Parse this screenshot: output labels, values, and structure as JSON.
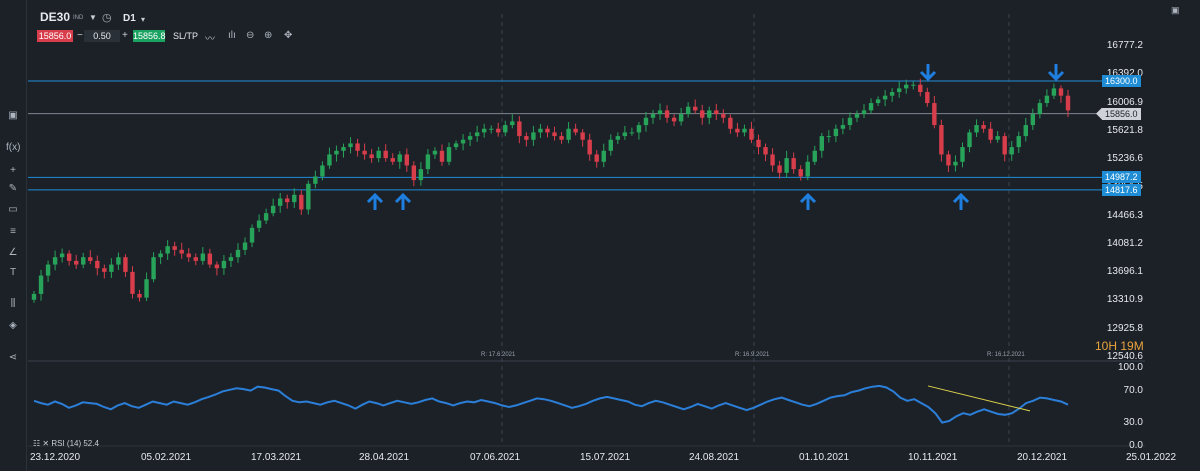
{
  "header": {
    "symbol": "DE30",
    "symbol_type": "IND",
    "timeframe": "D1",
    "bid": "15856.0",
    "qty": "0.50",
    "ask": "15856.8",
    "minus": "−",
    "plus": "+",
    "sltp": "SL/TP"
  },
  "icons": {
    "timeframe_dropdown": "chevron-down-icon",
    "clock": "clock-icon",
    "line_chart": "line-chart-icon",
    "indicators": "indicators-icon",
    "zoom_out": "zoom-out-icon",
    "zoom_in": "zoom-in-icon",
    "crosshair": "crosshair-icon",
    "close": "close-icon"
  },
  "sidebar": {
    "items": [
      {
        "name": "chart-icon",
        "glyph": "▣"
      },
      {
        "name": "function-icon",
        "glyph": "f(x)"
      },
      {
        "name": "crosshair-tool-icon",
        "glyph": "+"
      },
      {
        "name": "pencil-icon",
        "glyph": "✎"
      },
      {
        "name": "rectangle-icon",
        "glyph": "▭"
      },
      {
        "name": "fibonacci-icon",
        "glyph": "≡"
      },
      {
        "name": "angle-icon",
        "glyph": "∠"
      },
      {
        "name": "text-icon",
        "glyph": "T"
      },
      {
        "name": "layout-icon",
        "glyph": "⫼"
      },
      {
        "name": "layers-icon",
        "glyph": "◈"
      },
      {
        "name": "share-icon",
        "glyph": "⋖"
      }
    ]
  },
  "price_axis": {
    "ticks": [
      "16777.2",
      "16392.0",
      "16006.9",
      "15621.8",
      "15236.6",
      "14851.5",
      "14466.3",
      "14081.2",
      "13696.1",
      "13310.9",
      "12925.8",
      "12540.6"
    ]
  },
  "levels": [
    {
      "value": "16300.0",
      "style": "blue"
    },
    {
      "value": "15856.0",
      "style": "gray"
    },
    {
      "value": "14987.2",
      "style": "blue"
    },
    {
      "value": "14817.6",
      "style": "blue"
    }
  ],
  "date_axis": {
    "ticks": [
      "23.12.2020",
      "05.02.2021",
      "17.03.2021",
      "28.04.2021",
      "07.06.2021",
      "15.07.2021",
      "24.08.2021",
      "01.10.2021",
      "10.11.2021",
      "20.12.2021",
      "25.01.2022"
    ]
  },
  "rollovers": [
    "R: 17.6.2021",
    "R: 16.9.2021",
    "R: 16.12.2021"
  ],
  "timer": {
    "hours": "10H",
    "minutes": "19M"
  },
  "rsi": {
    "label": "RSI (14) 52.4",
    "axis": [
      "100.0",
      "70.0",
      "30.0",
      "0.0"
    ],
    "values": [
      58,
      55,
      53,
      57,
      54,
      49,
      52,
      56,
      55,
      54,
      50,
      47,
      52,
      55,
      51,
      49,
      53,
      57,
      55,
      53,
      57,
      55,
      53,
      56,
      60,
      63,
      66,
      70,
      72,
      74,
      73,
      71,
      76,
      75,
      73,
      71,
      64,
      58,
      56,
      57,
      55,
      53,
      56,
      58,
      55,
      52,
      48,
      53,
      57,
      55,
      52,
      55,
      58,
      56,
      54,
      56,
      59,
      61,
      57,
      55,
      52,
      55,
      57,
      56,
      59,
      57,
      55,
      52,
      50,
      52,
      55,
      58,
      61,
      60,
      58,
      55,
      52,
      49,
      51,
      54,
      58,
      61,
      63,
      61,
      59,
      57,
      53,
      51,
      55,
      58,
      56,
      53,
      50,
      47,
      50,
      54,
      51,
      48,
      52,
      55,
      52,
      49,
      46,
      49,
      53,
      57,
      60,
      62,
      59,
      56,
      53,
      51,
      54,
      58,
      62,
      64,
      65,
      69,
      71,
      74,
      76,
      77,
      75,
      70,
      62,
      58,
      60,
      55,
      50,
      42,
      30,
      32,
      38,
      42,
      40,
      44,
      47,
      44,
      41,
      40,
      42,
      48,
      55,
      58,
      62,
      61,
      59,
      57,
      53
    ],
    "colors": {
      "line": "#2b7fd8",
      "trend": "#e0d34a"
    }
  },
  "chart_data": {
    "type": "candlestick",
    "symbol": "DE30",
    "timeframe": "D1",
    "x_range": [
      "23.12.2020",
      "25.01.2022"
    ],
    "ylim": [
      12540.6,
      16777.2
    ],
    "horizontal_levels": [
      16300.0,
      15856.0,
      14987.2,
      14817.6
    ],
    "closes": [
      13400,
      13650,
      13800,
      13900,
      13950,
      13850,
      13800,
      13900,
      13850,
      13750,
      13700,
      13800,
      13900,
      13700,
      13400,
      13350,
      13600,
      13900,
      13950,
      14050,
      14000,
      13950,
      13900,
      13850,
      13950,
      13800,
      13750,
      13850,
      13900,
      14000,
      14100,
      14300,
      14400,
      14500,
      14600,
      14700,
      14650,
      14750,
      14550,
      14900,
      15000,
      15150,
      15300,
      15350,
      15400,
      15450,
      15350,
      15300,
      15250,
      15350,
      15250,
      15200,
      15300,
      15150,
      14950,
      15100,
      15300,
      15350,
      15200,
      15400,
      15450,
      15500,
      15550,
      15600,
      15650,
      15650,
      15600,
      15700,
      15750,
      15550,
      15500,
      15600,
      15650,
      15600,
      15550,
      15500,
      15650,
      15600,
      15500,
      15300,
      15200,
      15350,
      15500,
      15550,
      15600,
      15600,
      15700,
      15800,
      15850,
      15900,
      15800,
      15750,
      15850,
      15950,
      15900,
      15800,
      15900,
      15850,
      15800,
      15650,
      15600,
      15650,
      15500,
      15400,
      15300,
      15150,
      15050,
      15250,
      15100,
      15000,
      15200,
      15350,
      15550,
      15550,
      15650,
      15700,
      15800,
      15850,
      15900,
      16000,
      16050,
      16100,
      16150,
      16200,
      16250,
      16250,
      16150,
      16000,
      15700,
      15300,
      15150,
      15200,
      15400,
      15600,
      15700,
      15650,
      15500,
      15550,
      15300,
      15400,
      15550,
      15700,
      15850,
      16000,
      16100,
      16200,
      16100,
      15900
    ],
    "up_color": "#27a35a",
    "down_color": "#d73d4a",
    "arrows_down_at": [
      16300.0,
      16300.0
    ],
    "arrows_up_at": [
      14817.6,
      14817.6,
      14817.6,
      14817.6
    ]
  }
}
